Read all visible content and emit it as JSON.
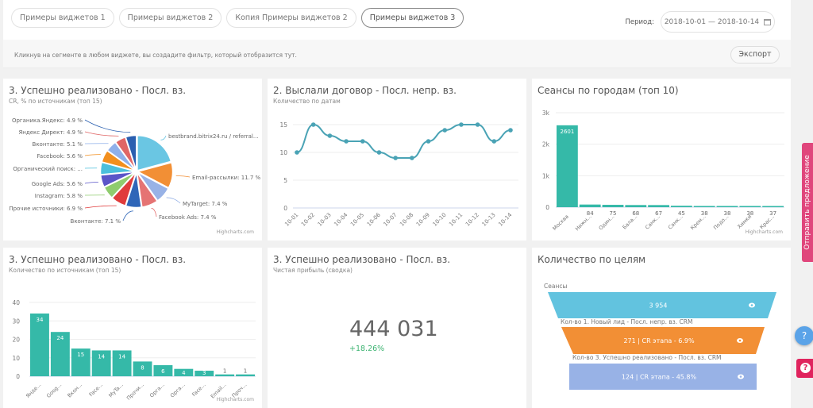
{
  "tabs": [
    {
      "label": "Примеры виджетов 1",
      "active": false
    },
    {
      "label": "Примеры виджетов 2",
      "active": false
    },
    {
      "label": "Копия Примеры виджетов 2",
      "active": false
    },
    {
      "label": "Примеры виджетов 3",
      "active": true
    }
  ],
  "period": {
    "label": "Период:",
    "value": "2018-10-01 — 2018-10-14",
    "icon": "calendar-icon"
  },
  "filter_bar": {
    "hint": "Кликнув на сегменте в любом виджете, вы создадите фильтр, который отобразится тут.",
    "export_label": "Экспорт"
  },
  "credits": "Highcharts.com",
  "widgets": {
    "pie": {
      "title": "3. Успешно реализовано - Посл. вз.",
      "subtitle": "CR, % по источникам (топ 15)"
    },
    "line": {
      "title": "2. Выслали договор - Посл. непр. вз.",
      "subtitle": "Количество по датам"
    },
    "cities": {
      "title": "Сеансы по городам (топ 10)"
    },
    "sources_bar": {
      "title": "3. Успешно реализовано - Посл. вз.",
      "subtitle": "Количество по источникам (топ 15)"
    },
    "kpi": {
      "title": "3. Успешно реализовано - Посл. вз.",
      "subtitle": "Чистая прибыль (сводка)",
      "value": "444 031",
      "delta": "+18.26%"
    },
    "funnel": {
      "title": "Количество по целям",
      "stages": [
        {
          "label": "Сеансы",
          "value": "3 954",
          "color": "#62c3df"
        },
        {
          "label": "Кол-во 1. Новый лид - Посл. непр. вз. CRM",
          "value": "271 | CR этапа - 6.9%",
          "color": "#f28f35"
        },
        {
          "label": "Кол-во 3. Успешно реализовано - Посл. вз. CRM",
          "value": "124 | CR этапа - 45.8%",
          "color": "#98b2e6"
        }
      ]
    }
  },
  "side": {
    "feedback_label": "Отправить предложение",
    "help_label": "?"
  },
  "chart_data": [
    {
      "type": "pie",
      "title": "3. Успешно реализовано - Посл. вз.",
      "subtitle": "CR, % по источникам (топ 15)",
      "slices": [
        {
          "label": "bestbrand.bitrix24.ru / referral...",
          "value": 20.5,
          "color": "#6ac6e3"
        },
        {
          "label": "Email-рассылки: 11.7 %",
          "value": 11.7,
          "color": "#f28f35"
        },
        {
          "label": "MyTarget: 7.4 %",
          "value": 7.4,
          "color": "#98b2e6"
        },
        {
          "label": "Facebook Ads: 7.4 %",
          "value": 7.4,
          "color": "#e57373"
        },
        {
          "label": "Вконтакте: 7.1 %",
          "value": 7.1,
          "color": "#2f66b8"
        },
        {
          "label": "Прочие источники: 6.9 %",
          "value": 6.9,
          "color": "#e03b3b"
        },
        {
          "label": "Instagram: 5.8 %",
          "value": 5.8,
          "color": "#8fcc6e"
        },
        {
          "label": "Google Ads: 5.6 %",
          "value": 5.6,
          "color": "#5a55c8"
        },
        {
          "label": "Органический поиск: ...",
          "value": 5.6,
          "color": "#4bbfdc"
        },
        {
          "label": "Facebook: 5.6 %",
          "value": 5.6,
          "color": "#f28f1e"
        },
        {
          "label": "Вконтакте: 5.1 %",
          "value": 5.1,
          "color": "#8fb0ea"
        },
        {
          "label": "Яндекс Директ: 4.9 %",
          "value": 4.9,
          "color": "#e06666"
        },
        {
          "label": "Органика.Яндекс: 4.9 %",
          "value": 4.9,
          "color": "#2a5fb0"
        }
      ]
    },
    {
      "type": "line",
      "title": "2. Выслали договор - Посл. непр. вз.",
      "subtitle": "Количество по датам",
      "categories": [
        "10-01",
        "10-02",
        "10-03",
        "10-04",
        "10-05",
        "10-06",
        "10-07",
        "10-08",
        "10-09",
        "10-10",
        "10-11",
        "10-12",
        "10-13",
        "10-14"
      ],
      "values": [
        10,
        15,
        13,
        12,
        12,
        10,
        9,
        9,
        12,
        14,
        15,
        15,
        12,
        14
      ],
      "yticks": [
        0,
        5,
        10,
        15
      ],
      "ylim": [
        0,
        17
      ],
      "color": "#4aa3b5"
    },
    {
      "type": "bar",
      "title": "Сеансы по городам (топ 10)",
      "categories": [
        "Москва",
        "Нижн...",
        "Один...",
        "Бала...",
        "Санк...",
        "Санк...",
        "Крем...",
        "Подо...",
        "Химки",
        "Крас..."
      ],
      "values": [
        2601,
        84,
        75,
        68,
        67,
        45,
        38,
        38,
        38,
        37
      ],
      "yticks": [
        "0",
        "1k",
        "2k",
        "3k"
      ],
      "ylim": [
        0,
        3000
      ],
      "color": "#35b9a8"
    },
    {
      "type": "bar",
      "title": "3. Успешно реализовано - Посл. вз.",
      "subtitle": "Количество по источникам (топ 15)",
      "categories": [
        "Янде...",
        "Goog...",
        "Вкон...",
        "Face...",
        "MyTa...",
        "Прочи...",
        "Орга...",
        "Орга...",
        "Face...",
        "Email...",
        "Проч..."
      ],
      "values": [
        34,
        24,
        15,
        14,
        14,
        8,
        6,
        4,
        3,
        1,
        1
      ],
      "yticks": [
        0,
        10,
        20,
        30,
        40
      ],
      "ylim": [
        0,
        40
      ],
      "color": "#35b9a8"
    }
  ]
}
